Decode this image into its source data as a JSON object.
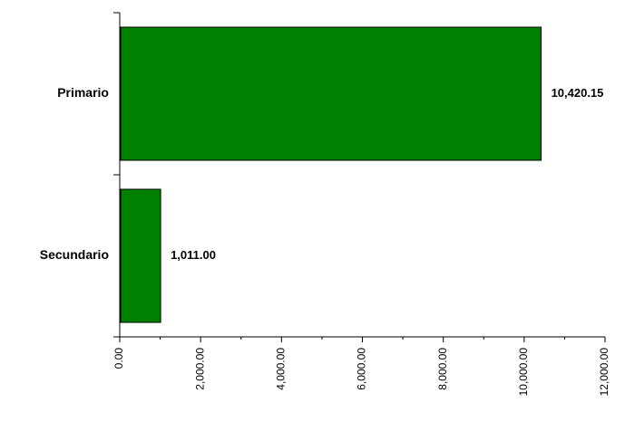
{
  "chart_data": {
    "type": "bar",
    "orientation": "horizontal",
    "categories": [
      "Primario",
      "Secundario"
    ],
    "values": [
      10420.15,
      1011.0
    ],
    "value_labels": [
      "10,420.15",
      "1,011.00"
    ],
    "xlim": [
      0,
      12000
    ],
    "x_ticks": [
      0,
      2000,
      4000,
      6000,
      8000,
      10000,
      12000
    ],
    "x_tick_labels": [
      "0.00",
      "2,000.00",
      "4,000.00",
      "6,000.00",
      "8,000.00",
      "10,000.00",
      "12,000.00"
    ],
    "bar_color": "#008000",
    "grid": false,
    "legend": "none",
    "title": "",
    "xlabel": "",
    "ylabel": ""
  }
}
